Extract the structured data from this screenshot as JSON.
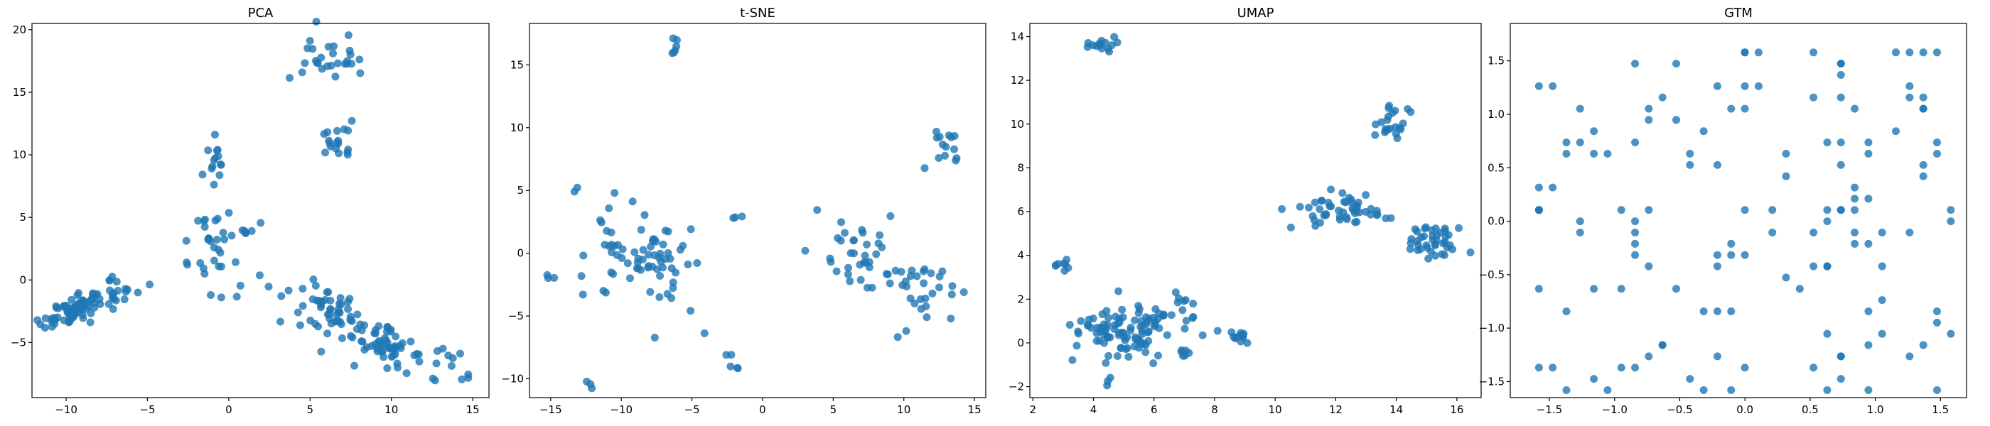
{
  "colors": {
    "marker": "#1f77b4",
    "axes": "#000000",
    "background": "#ffffff"
  },
  "chart_data": [
    {
      "type": "scatter",
      "title": "PCA",
      "xlabel": "",
      "ylabel": "",
      "xlim": [
        -12.1,
        16.0
      ],
      "ylim": [
        -9.4,
        20.5
      ],
      "xticks": [
        -10,
        -5,
        0,
        5,
        10,
        15
      ],
      "xtick_labels": [
        "−10",
        "−5",
        "0",
        "5",
        "10",
        "15"
      ],
      "yticks": [
        -5,
        0,
        5,
        10,
        15,
        20
      ],
      "ytick_labels": [
        "−5",
        "0",
        "5",
        "10",
        "15",
        "20"
      ],
      "series": [
        {
          "name": "points",
          "clusters": [
            {
              "cx": -9.5,
              "cy": -2.5,
              "sx": 1.0,
              "sy": 0.5,
              "n": 80,
              "slope": 0.5
            },
            {
              "cx": -6.5,
              "cy": -0.5,
              "sx": 1.0,
              "sy": 0.8,
              "n": 14
            },
            {
              "cx": -1.0,
              "cy": 9.2,
              "sx": 0.4,
              "sy": 1.0,
              "n": 14
            },
            {
              "cx": -1.0,
              "cy": 2.5,
              "sx": 0.8,
              "sy": 1.5,
              "n": 30
            },
            {
              "cx": 1.0,
              "cy": 3.9,
              "sx": 0.6,
              "sy": 0.4,
              "n": 8
            },
            {
              "cx": 6.0,
              "cy": 17.8,
              "sx": 1.0,
              "sy": 1.0,
              "n": 28
            },
            {
              "cx": 6.7,
              "cy": 10.8,
              "sx": 0.5,
              "sy": 1.0,
              "n": 18
            },
            {
              "cx": 6.2,
              "cy": -2.5,
              "sx": 1.6,
              "sy": 1.2,
              "n": 60,
              "slope": -0.5
            },
            {
              "cx": 9.8,
              "cy": -5.3,
              "sx": 1.0,
              "sy": 0.8,
              "n": 50,
              "slope": -0.5
            },
            {
              "cx": 13.5,
              "cy": -6.2,
              "sx": 0.8,
              "sy": 0.8,
              "n": 8
            },
            {
              "cx": 14.3,
              "cy": -7.5,
              "sx": 0.3,
              "sy": 0.5,
              "n": 3
            }
          ]
        }
      ]
    },
    {
      "type": "scatter",
      "title": "t-SNE",
      "xlabel": "",
      "ylabel": "",
      "xlim": [
        -16.5,
        15.8
      ],
      "ylim": [
        -11.5,
        18.3
      ],
      "xticks": [
        -15,
        -10,
        -5,
        0,
        5,
        10,
        15
      ],
      "xtick_labels": [
        "−15",
        "−10",
        "−5",
        "0",
        "5",
        "10",
        "15"
      ],
      "yticks": [
        -10,
        -5,
        0,
        5,
        10,
        15
      ],
      "ytick_labels": [
        "−10",
        "−5",
        "0",
        "5",
        "10",
        "15"
      ],
      "series": [
        {
          "name": "points",
          "clusters": [
            {
              "cx": -15.0,
              "cy": -1.8,
              "sx": 0.2,
              "sy": 0.2,
              "n": 3
            },
            {
              "cx": -13.3,
              "cy": 5.2,
              "sx": 0.1,
              "sy": 0.1,
              "n": 2
            },
            {
              "cx": -6.2,
              "cy": 16.5,
              "sx": 0.15,
              "sy": 0.5,
              "n": 6
            },
            {
              "cx": -10.0,
              "cy": 0.0,
              "sx": 1.5,
              "sy": 2.0,
              "n": 35
            },
            {
              "cx": -7.0,
              "cy": -1.0,
              "sx": 1.2,
              "sy": 1.5,
              "n": 30
            },
            {
              "cx": -5.0,
              "cy": -1.5,
              "sx": 1.0,
              "sy": 2.5,
              "n": 8
            },
            {
              "cx": -12.0,
              "cy": -10.6,
              "sx": 0.2,
              "sy": 0.2,
              "n": 3
            },
            {
              "cx": -2.2,
              "cy": -8.6,
              "sx": 0.3,
              "sy": 0.4,
              "n": 5
            },
            {
              "cx": -1.8,
              "cy": 2.8,
              "sx": 0.2,
              "sy": 0.1,
              "n": 3
            },
            {
              "cx": 7.0,
              "cy": -0.5,
              "sx": 1.2,
              "sy": 1.8,
              "n": 35
            },
            {
              "cx": 11.5,
              "cy": -3.0,
              "sx": 1.2,
              "sy": 1.5,
              "n": 30
            },
            {
              "cx": 13.0,
              "cy": 8.5,
              "sx": 0.7,
              "sy": 1.0,
              "n": 14
            }
          ]
        }
      ]
    },
    {
      "type": "scatter",
      "title": "UMAP",
      "xlabel": "",
      "ylabel": "",
      "xlim": [
        1.9,
        16.8
      ],
      "ylim": [
        -2.5,
        14.6
      ],
      "xticks": [
        2,
        4,
        6,
        8,
        10,
        12,
        14,
        16
      ],
      "xtick_labels": [
        "2",
        "4",
        "6",
        "8",
        "10",
        "12",
        "14",
        "16"
      ],
      "yticks": [
        -2,
        0,
        2,
        4,
        6,
        8,
        10,
        12,
        14
      ],
      "ytick_labels": [
        "−2",
        "0",
        "2",
        "4",
        "6",
        "8",
        "10",
        "12",
        "14"
      ],
      "series": [
        {
          "name": "points",
          "clusters": [
            {
              "cx": 4.3,
              "cy": 13.7,
              "sx": 0.3,
              "sy": 0.2,
              "n": 14
            },
            {
              "cx": 2.9,
              "cy": 3.7,
              "sx": 0.2,
              "sy": 0.2,
              "n": 8
            },
            {
              "cx": 5.3,
              "cy": 0.5,
              "sx": 1.0,
              "sy": 0.7,
              "n": 110
            },
            {
              "cx": 4.5,
              "cy": -1.7,
              "sx": 0.1,
              "sy": 0.1,
              "n": 3
            },
            {
              "cx": 6.9,
              "cy": 1.9,
              "sx": 0.15,
              "sy": 0.2,
              "n": 5
            },
            {
              "cx": 7.0,
              "cy": -0.6,
              "sx": 0.15,
              "sy": 0.1,
              "n": 4
            },
            {
              "cx": 8.8,
              "cy": 0.3,
              "sx": 0.2,
              "sy": 0.2,
              "n": 12
            },
            {
              "cx": 13.8,
              "cy": 10.2,
              "sx": 0.4,
              "sy": 0.5,
              "n": 22
            },
            {
              "cx": 12.0,
              "cy": 6.0,
              "sx": 0.8,
              "sy": 0.4,
              "n": 50
            },
            {
              "cx": 15.3,
              "cy": 4.6,
              "sx": 0.5,
              "sy": 0.4,
              "n": 40
            }
          ]
        }
      ]
    },
    {
      "type": "scatter",
      "title": "GTM",
      "xlabel": "",
      "ylabel": "",
      "xlim": [
        -1.8,
        1.7
      ],
      "ylim": [
        -1.65,
        1.85
      ],
      "xticks": [
        -1.5,
        -1.0,
        -0.5,
        0.0,
        0.5,
        1.0,
        1.5
      ],
      "xtick_labels": [
        "−1.5",
        "−1.0",
        "−0.5",
        "0.0",
        "0.5",
        "1.0",
        "1.5"
      ],
      "yticks": [
        -1.5,
        -1.0,
        -0.5,
        0.0,
        0.5,
        1.0,
        1.5
      ],
      "ytick_labels": [
        "−1.5",
        "−1.0",
        "−0.5",
        "0.0",
        "0.5",
        "1.0",
        "1.5"
      ],
      "series": [
        {
          "name": "points",
          "grid": {
            "step": 0.1053,
            "x0": -1.58,
            "y0": -1.58,
            "columns": 31,
            "rows": 31,
            "ranges": [
              [
                -1.7,
                1.6
              ],
              [
                -1.6,
                1.7
              ]
            ],
            "n": 140
          }
        }
      ]
    }
  ]
}
